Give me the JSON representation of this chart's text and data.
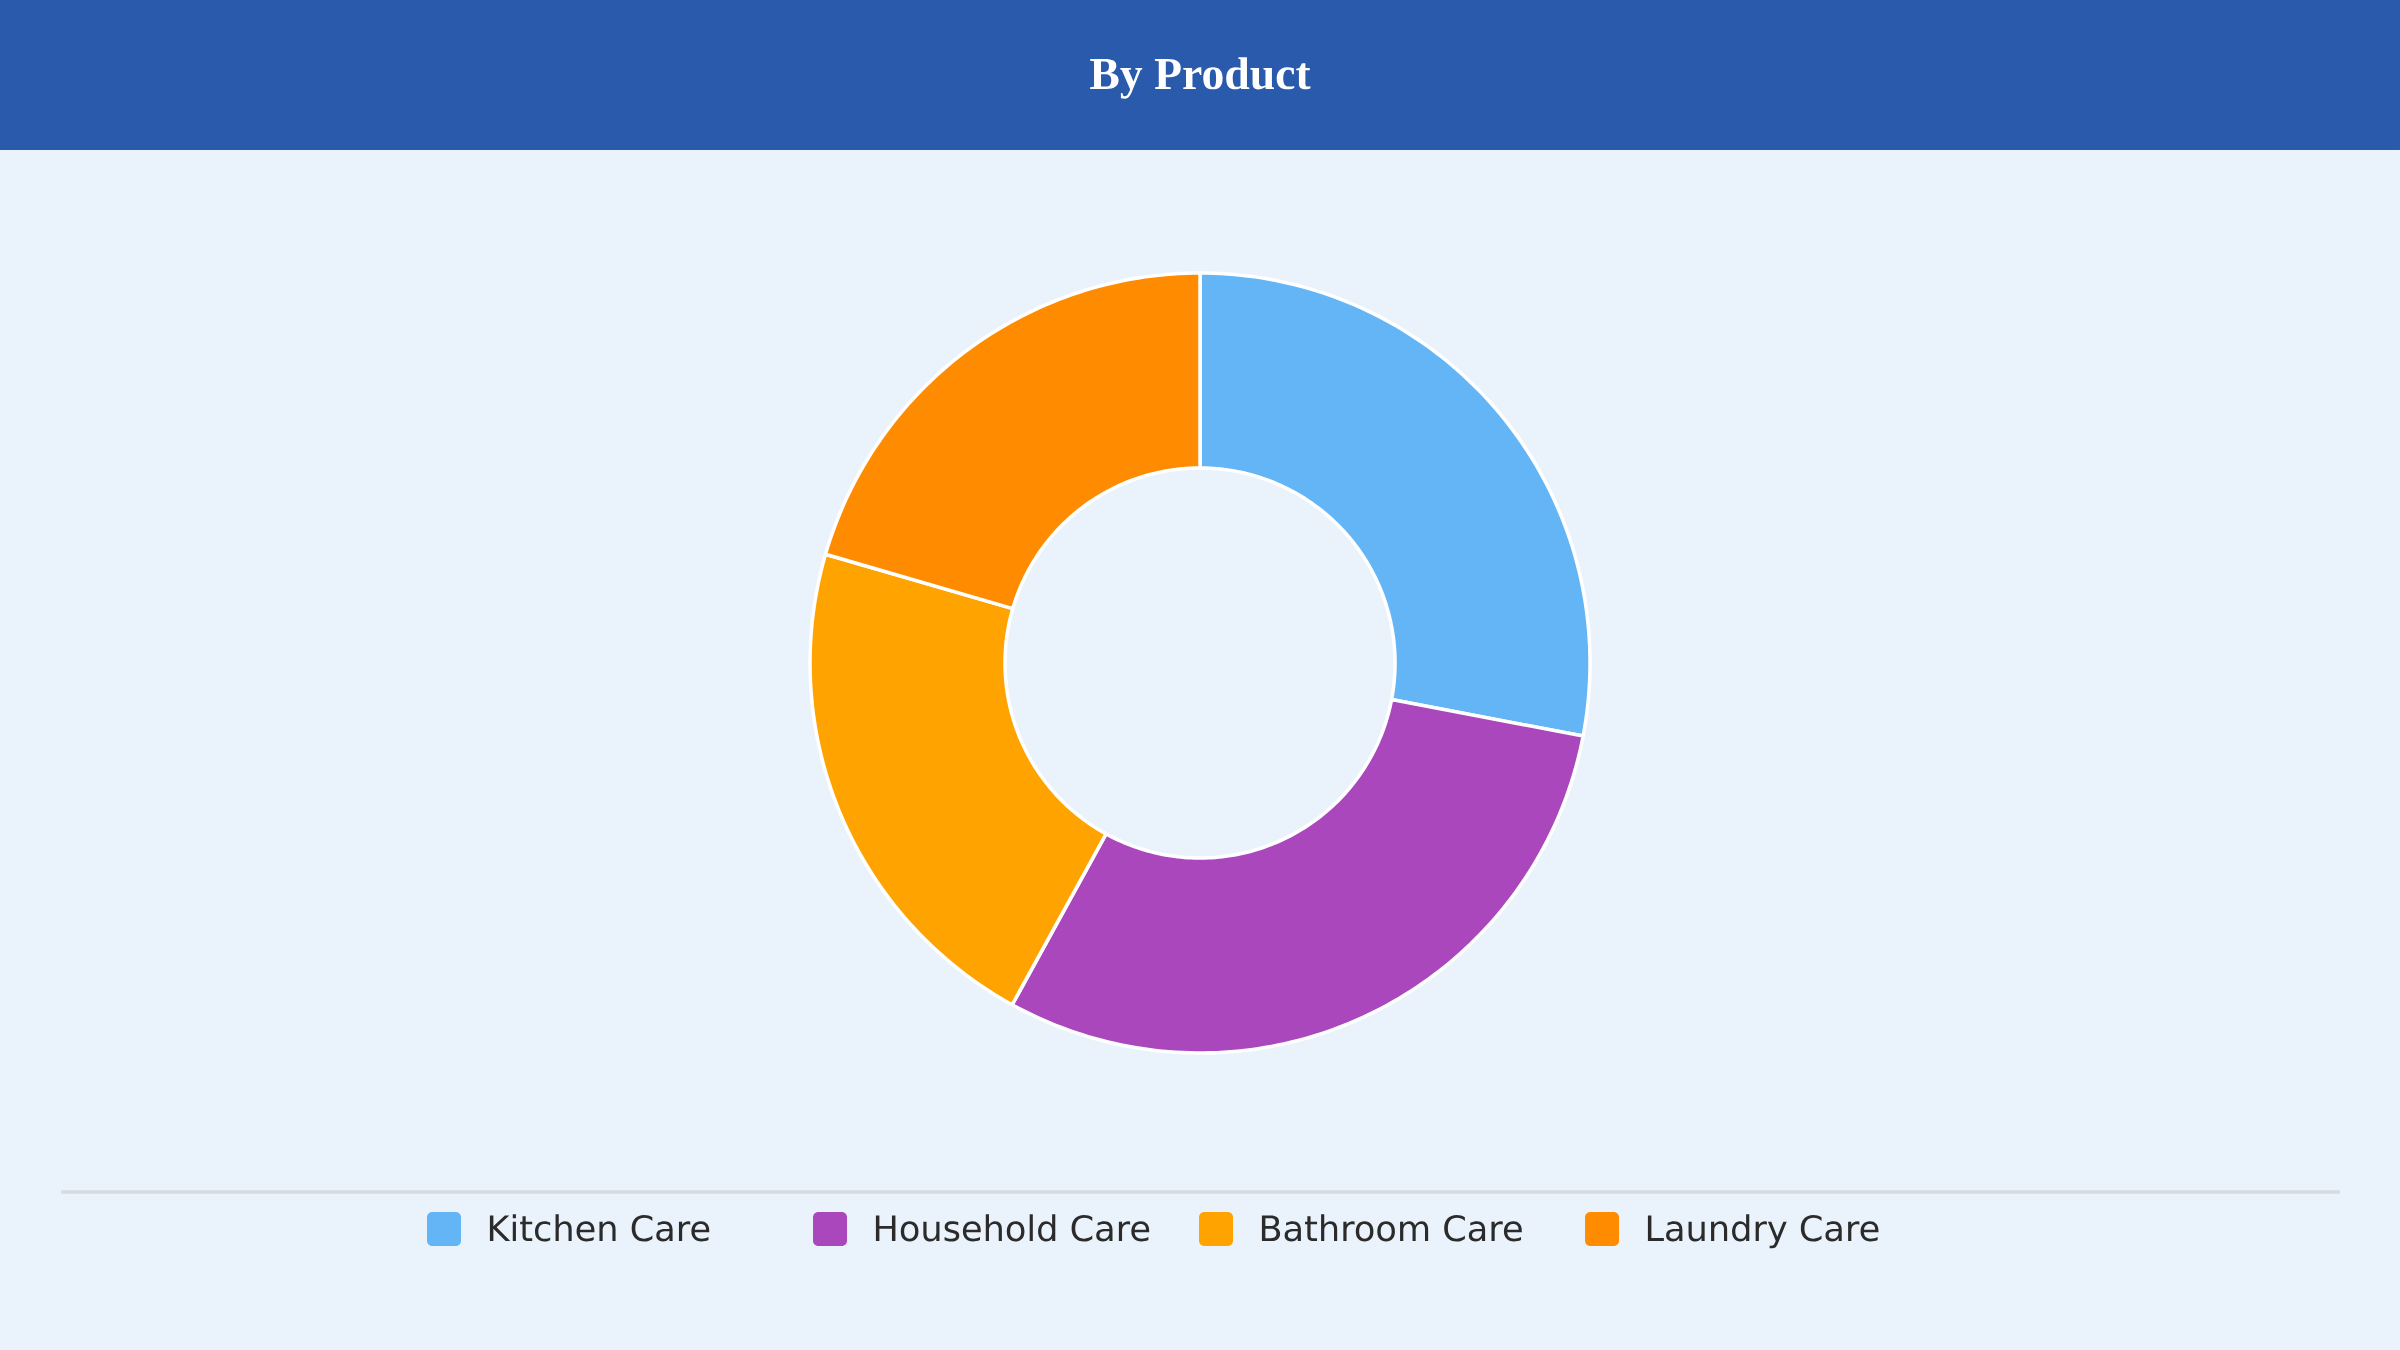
{
  "chart_data": {
    "type": "donut",
    "title": "By Product",
    "categories": [
      "Kitchen Care",
      "Household Care",
      "Bathroom Care",
      "Laundry Care"
    ],
    "values": [
      28,
      30,
      21.5,
      20.5
    ],
    "colors": [
      "#64b5f6",
      "#ab47bc",
      "#ffa300",
      "#ff8c00"
    ],
    "legend": "bottom"
  }
}
